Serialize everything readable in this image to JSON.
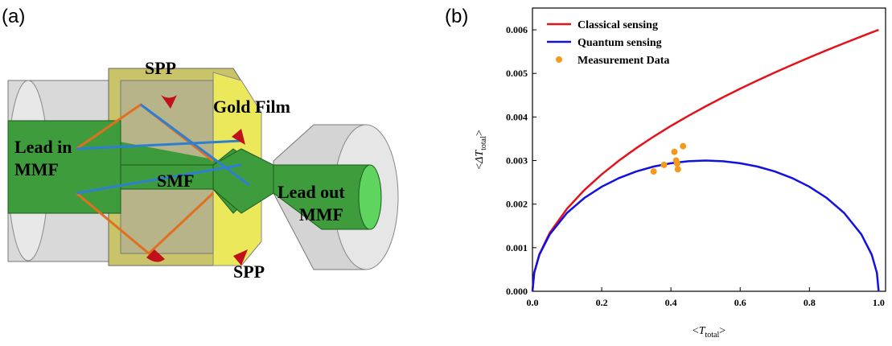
{
  "panels": [
    "(a)",
    "(b)"
  ],
  "diagram": {
    "spp_top": "SPP",
    "gold_film": "Gold Film",
    "lead_in": [
      "Lead in",
      "MMF"
    ],
    "smf": "SMF",
    "lead_out": [
      "Lead out",
      "MMF"
    ],
    "spp_bottom": "SPP"
  },
  "chart_data": {
    "type": "line",
    "x_label": [
      "<",
      "T",
      "total",
      ">"
    ],
    "y_label": [
      "<",
      "ΔT",
      "total",
      ">"
    ],
    "x": [
      0,
      0.005,
      0.02,
      0.05,
      0.1,
      0.15,
      0.2,
      0.25,
      0.3,
      0.35,
      0.4,
      0.45,
      0.5,
      0.55,
      0.6,
      0.65,
      0.7,
      0.75,
      0.8,
      0.85,
      0.9,
      0.95,
      0.98,
      0.995,
      1.0
    ],
    "series": [
      {
        "name": "Classical sensing",
        "color": "#e3121b",
        "values": [
          0,
          0.000424,
          0.000849,
          0.001342,
          0.001897,
          0.002324,
          0.002683,
          0.003,
          0.003286,
          0.00355,
          0.003795,
          0.004025,
          0.004243,
          0.00445,
          0.004648,
          0.004837,
          0.00502,
          0.005196,
          0.005367,
          0.005532,
          0.005692,
          0.005848,
          0.00594,
          0.005985,
          0.006
        ]
      },
      {
        "name": "Quantum sensing",
        "color": "#1212e0",
        "values": [
          0,
          0.000423,
          0.00084,
          0.001308,
          0.0018,
          0.002142,
          0.0024,
          0.002598,
          0.00275,
          0.002862,
          0.002939,
          0.002985,
          0.003,
          0.002985,
          0.002939,
          0.002862,
          0.00275,
          0.002598,
          0.0024,
          0.002142,
          0.0018,
          0.001308,
          0.00084,
          0.000423,
          0
        ]
      },
      {
        "name": "Measurement Data",
        "color": "#f39a1e",
        "type": "scatter",
        "x": [
          0.35,
          0.38,
          0.41,
          0.415,
          0.418,
          0.42,
          0.435
        ],
        "values": [
          0.00275,
          0.0029,
          0.0032,
          0.003,
          0.00293,
          0.0028,
          0.00333
        ]
      }
    ],
    "xlim": [
      0,
      1.02
    ],
    "ylim": [
      0,
      0.0065
    ],
    "xticks": [
      {
        "value": 0,
        "label": "0.0"
      },
      0.2,
      0.4,
      0.6,
      0.8,
      {
        "value": 1,
        "label": "1.0"
      }
    ],
    "yticks": [
      {
        "value": 0,
        "label": "0.000"
      },
      {
        "value": 0.001,
        "label": "0.001"
      },
      {
        "value": 0.002,
        "label": "0.002"
      },
      {
        "value": 0.003,
        "label": "0.003"
      },
      {
        "value": 0.004,
        "label": "0.004"
      },
      {
        "value": 0.005,
        "label": "0.005"
      },
      {
        "value": 0.006,
        "label": "0.006"
      }
    ]
  }
}
